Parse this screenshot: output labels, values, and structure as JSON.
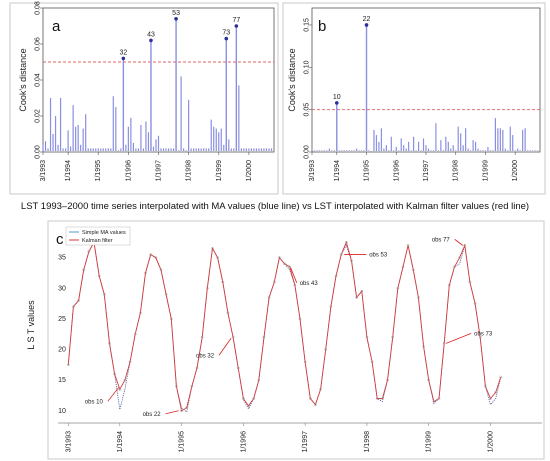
{
  "colors": {
    "stem": "#8a8fe0",
    "stem_dark": "#2b2f9e",
    "threshold": "#e06060",
    "ma_line": "#4a5a9a",
    "kalman_line": "#d43a3a",
    "marker": "#a0a0a0",
    "arrow": "#e02020"
  },
  "chart_data": [
    {
      "type": "bar",
      "panel": "a",
      "ylabel": "Cook's distance",
      "ylim": [
        0,
        0.08
      ],
      "yticks": [
        "0.00",
        "0.02",
        "0.04",
        "0.06",
        "0.08"
      ],
      "xlim": [
        0,
        92
      ],
      "xticks": [
        {
          "label": "3/1993",
          "x": 0
        },
        {
          "label": "1/1994",
          "x": 10
        },
        {
          "label": "1/1995",
          "x": 22
        },
        {
          "label": "1/1996",
          "x": 34
        },
        {
          "label": "1/1997",
          "x": 46
        },
        {
          "label": "1/1998",
          "x": 58
        },
        {
          "label": "1/1999",
          "x": 70
        },
        {
          "label": "1/2000",
          "x": 82
        }
      ],
      "threshold": 0.05,
      "labeled_points": [
        {
          "label": "32",
          "x": 32,
          "y": 0.052
        },
        {
          "label": "43",
          "x": 43,
          "y": 0.062
        },
        {
          "label": "53",
          "x": 53,
          "y": 0.074
        },
        {
          "label": "73",
          "x": 73,
          "y": 0.063
        },
        {
          "label": "77",
          "x": 77,
          "y": 0.07
        }
      ],
      "values": [
        0.004,
        0.006,
        0.002,
        0.03,
        0.01,
        0.02,
        0.004,
        0.03,
        0.002,
        0.002,
        0.012,
        0.003,
        0.026,
        0.014,
        0.015,
        0.004,
        0.013,
        0.021,
        0.002,
        0.002,
        0.002,
        0.002,
        0.002,
        0.002,
        0.002,
        0.002,
        0.002,
        0.002,
        0.031,
        0.025,
        0.001,
        0.002,
        0.052,
        0.004,
        0.014,
        0.019,
        0.005,
        0.002,
        0.002,
        0.015,
        0.002,
        0.017,
        0.011,
        0.062,
        0.003,
        0.007,
        0.009,
        0.002,
        0.002,
        0.002,
        0.002,
        0.002,
        0.002,
        0.074,
        0.001,
        0.042,
        0.002,
        0.001,
        0.029,
        0.002,
        0.002,
        0.002,
        0.002,
        0.002,
        0.002,
        0.002,
        0.002,
        0.018,
        0.014,
        0.013,
        0.011,
        0.013,
        0.004,
        0.063,
        0.007,
        0.002,
        0.002,
        0.07,
        0.037,
        0.002,
        0.002,
        0.002,
        0.002,
        0.002,
        0.002,
        0.002,
        0.002,
        0.002,
        0.002,
        0.002,
        0.002,
        0.002
      ]
    },
    {
      "type": "bar",
      "panel": "b",
      "ylabel": "Cook's distance",
      "ylim": [
        0,
        0.17
      ],
      "yticks": [
        "0.00",
        "0.05",
        "0.10",
        "0.15"
      ],
      "xlim": [
        0,
        92
      ],
      "xticks": [
        {
          "label": "3/1993",
          "x": 0
        },
        {
          "label": "1/1994",
          "x": 10
        },
        {
          "label": "1/1995",
          "x": 22
        },
        {
          "label": "1/1996",
          "x": 34
        },
        {
          "label": "1/1997",
          "x": 46
        },
        {
          "label": "1/1998",
          "x": 58
        },
        {
          "label": "1/1999",
          "x": 70
        },
        {
          "label": "1/2000",
          "x": 82
        }
      ],
      "threshold": 0.05,
      "labeled_points": [
        {
          "label": "10",
          "x": 10,
          "y": 0.058
        },
        {
          "label": "22",
          "x": 22,
          "y": 0.15
        }
      ],
      "values": [
        0.002,
        0.002,
        0.002,
        0.002,
        0.002,
        0.002,
        0.002,
        0.004,
        0.002,
        0.002,
        0.058,
        0.002,
        0.002,
        0.002,
        0.002,
        0.002,
        0.002,
        0.002,
        0.004,
        0.002,
        0.002,
        0.002,
        0.15,
        0.002,
        0.001,
        0.026,
        0.02,
        0.012,
        0.028,
        0.004,
        0.008,
        0.002,
        0.018,
        0.002,
        0.006,
        0.002,
        0.016,
        0.008,
        0.004,
        0.012,
        0.002,
        0.018,
        0.002,
        0.012,
        0.002,
        0.016,
        0.008,
        0.004,
        0.002,
        0.002,
        0.034,
        0.002,
        0.014,
        0.002,
        0.018,
        0.012,
        0.004,
        0.008,
        0.002,
        0.03,
        0.022,
        0.008,
        0.028,
        0.004,
        0.002,
        0.014,
        0.012,
        0.004,
        0.002,
        0.002,
        0.002,
        0.006,
        0.002,
        0.002,
        0.04,
        0.028,
        0.028,
        0.026,
        0.004,
        0.002,
        0.03,
        0.02,
        0.002,
        0.004,
        0.002,
        0.026,
        0.028,
        0.002,
        0.002,
        0.002,
        0.002,
        0.002
      ]
    },
    {
      "type": "line",
      "panel": "c",
      "title": "LST 1993–2000 time series interpolated with MA values (blue line) vs LST interpolated with Kalman filter values (red line)",
      "ylabel": "L S T   values",
      "ylim": [
        8,
        40
      ],
      "yticks": [
        10,
        15,
        20,
        25,
        30,
        35
      ],
      "xlim": [
        -2,
        92
      ],
      "xticks": [
        {
          "label": "3/1993",
          "x": 0
        },
        {
          "label": "1/1994",
          "x": 10
        },
        {
          "label": "1/1995",
          "x": 22
        },
        {
          "label": "1/1996",
          "x": 34
        },
        {
          "label": "1/1997",
          "x": 46
        },
        {
          "label": "1/1998",
          "x": 58
        },
        {
          "label": "1/1999",
          "x": 70
        },
        {
          "label": "1/2000",
          "x": 82
        }
      ],
      "legend": [
        "Simple MA values",
        "Kalman filter"
      ],
      "series": [
        {
          "name": "Simple MA values",
          "values": [
            17.5,
            27,
            28,
            33,
            36,
            37.5,
            32,
            29,
            21,
            16,
            10.2,
            13.5,
            18,
            22.5,
            26,
            32.5,
            35.5,
            35,
            33,
            29,
            25,
            14,
            10.5,
            9.8,
            14,
            17,
            22,
            30,
            36.5,
            35,
            31,
            26,
            22,
            17,
            11.8,
            10.3,
            12,
            15,
            22,
            28.5,
            31,
            35,
            34,
            33,
            30.5,
            25,
            18,
            12,
            11,
            13.5,
            20,
            27,
            32,
            35.5,
            37,
            34.5,
            28.5,
            29.5,
            22,
            18,
            12,
            11.5,
            15,
            22,
            30,
            33.5,
            37,
            33,
            28.5,
            20.5,
            15,
            11.2,
            12,
            21,
            30.5,
            33.5,
            34,
            37,
            31,
            27.5,
            22,
            14,
            11,
            12,
            15.5
          ]
        },
        {
          "name": "Kalman filter",
          "values": [
            17.5,
            27,
            28,
            33,
            36,
            37.5,
            32,
            29,
            21,
            16,
            13.5,
            15,
            18,
            22.5,
            26,
            32.5,
            35.5,
            35,
            33,
            29,
            25,
            14,
            10,
            10.5,
            14,
            17,
            22,
            30,
            36.5,
            35,
            31,
            26,
            22,
            17,
            12,
            10.8,
            12,
            15,
            22,
            28.5,
            31,
            35,
            34,
            33.5,
            30.5,
            25,
            18,
            12,
            11,
            13.5,
            20,
            27,
            32,
            35.5,
            37.5,
            34.5,
            28.5,
            29.5,
            22,
            18,
            12,
            12,
            15,
            22,
            30,
            33.5,
            37,
            33,
            28.5,
            20.5,
            15,
            11.5,
            12,
            21,
            30.5,
            33.5,
            35,
            37,
            31,
            27.5,
            22,
            14,
            12,
            13,
            15.5
          ]
        }
      ],
      "annotations": [
        {
          "label": "obs 10",
          "x": 10
        },
        {
          "label": "obs 22",
          "x": 22
        },
        {
          "label": "obs 32",
          "x": 32
        },
        {
          "label": "obs 43",
          "x": 43
        },
        {
          "label": "obs 53",
          "x": 53
        },
        {
          "label": "obs 73",
          "x": 73
        },
        {
          "label": "obs 77",
          "x": 77
        }
      ]
    }
  ]
}
